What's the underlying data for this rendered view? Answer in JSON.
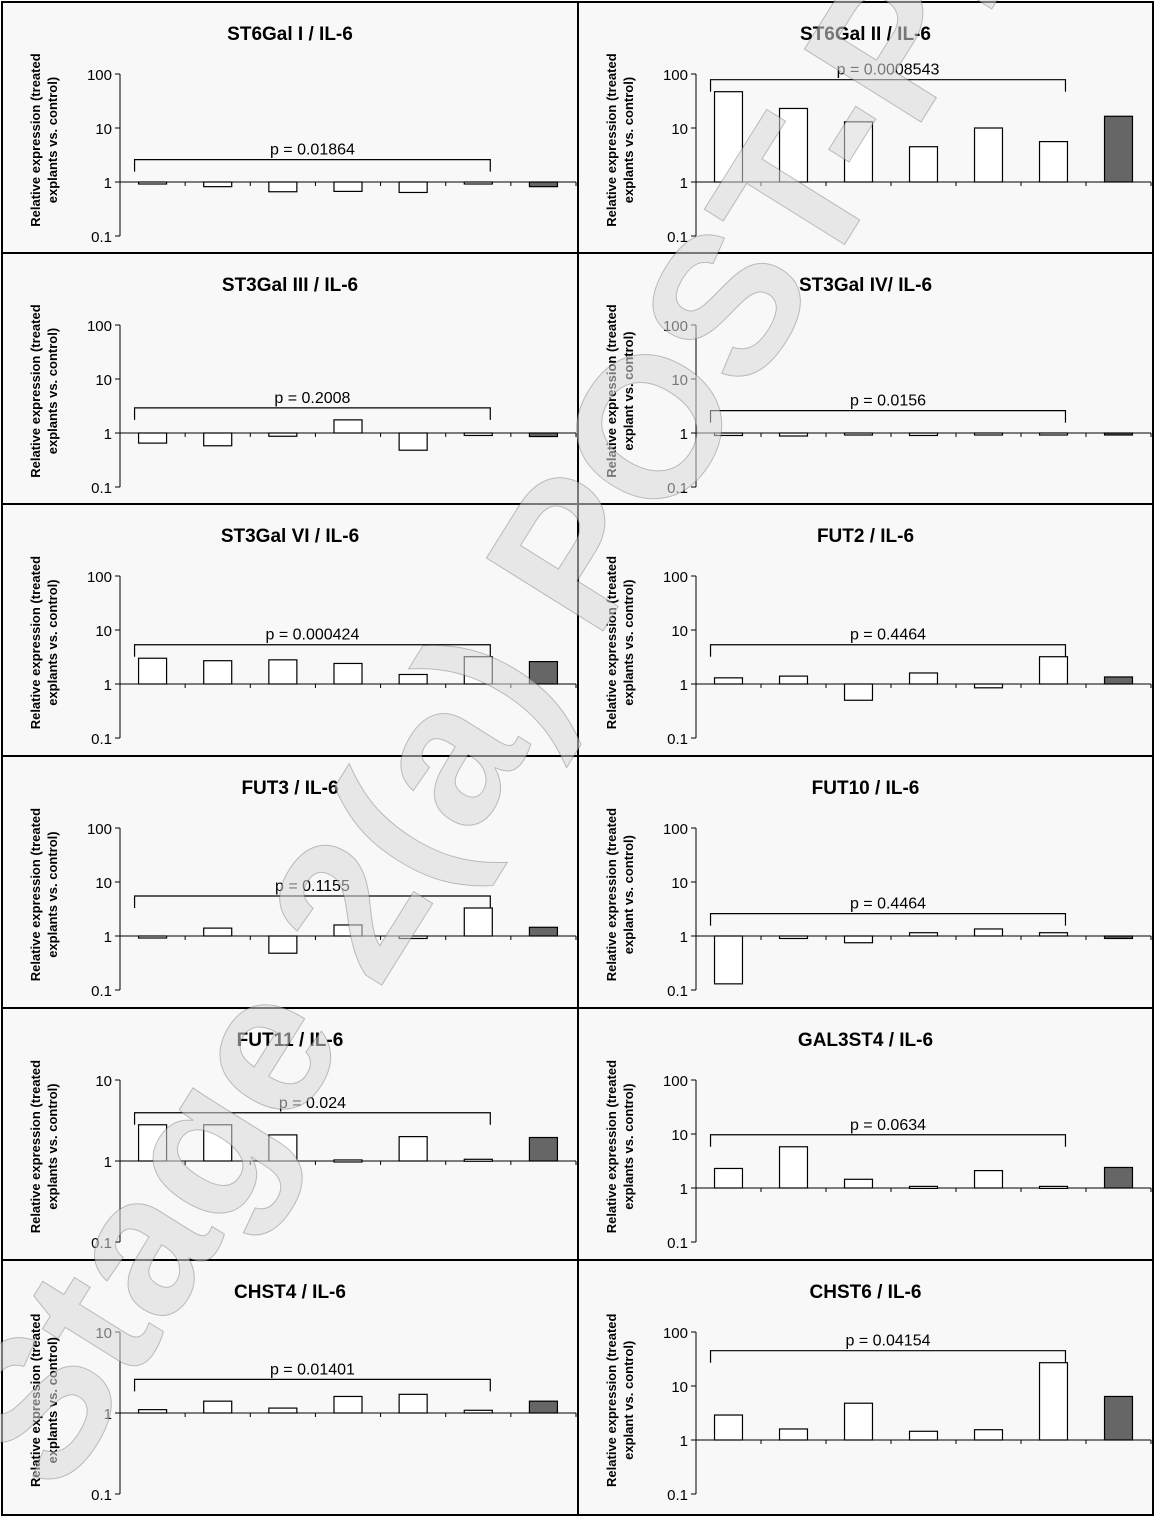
{
  "chart_data": [
    {
      "type": "bar",
      "title": "ST6Gal I / IL-6",
      "ylabel": "Relative expression (treated explants vs. control)",
      "yscale": "log",
      "ylim": [
        0.1,
        100
      ],
      "yticks": [
        "0.1",
        "1",
        "10",
        "100"
      ],
      "values": [
        0.97,
        0.82,
        0.66,
        0.67,
        0.64,
        0.97,
        0.82
      ],
      "pvalue": "p = 0.01864"
    },
    {
      "type": "bar",
      "title": "ST6Gal II / IL-6",
      "ylabel": "Relative expression (treated explants vs. control)",
      "yscale": "log",
      "ylim": [
        0.1,
        100
      ],
      "yticks": [
        "0.1",
        "1",
        "10",
        "100"
      ],
      "values": [
        47,
        23,
        13,
        4.5,
        10,
        5.6,
        16.5
      ],
      "pvalue": "p = 0.0008543"
    },
    {
      "type": "bar",
      "title": "ST3Gal III / IL-6",
      "ylabel": "Relative expression (treated explants vs. control)",
      "yscale": "log",
      "ylim": [
        0.1,
        100
      ],
      "yticks": [
        "0.1",
        "1",
        "10",
        "100"
      ],
      "values": [
        0.65,
        0.58,
        0.87,
        1.75,
        0.48,
        0.9,
        0.86
      ],
      "pvalue": "p = 0.2008"
    },
    {
      "type": "bar",
      "title": "ST3Gal IV/ IL-6",
      "ylabel": "Relative expression (treated explant vs. control)",
      "yscale": "log",
      "ylim": [
        0.1,
        100
      ],
      "yticks": [
        "0.1",
        "1",
        "10",
        "100"
      ],
      "values": [
        0.9,
        0.88,
        1.0,
        0.9,
        1.0,
        0.92,
        0.92
      ],
      "pvalue": "p = 0.0156"
    },
    {
      "type": "bar",
      "title": "ST3Gal VI / IL-6",
      "ylabel": "Relative expression (treated explants vs. control)",
      "yscale": "log",
      "ylim": [
        0.1,
        100
      ],
      "yticks": [
        "0.1",
        "1",
        "10",
        "100"
      ],
      "values": [
        3.0,
        2.7,
        2.8,
        2.4,
        1.5,
        3.2,
        2.6
      ],
      "pvalue": "p = 0.000424"
    },
    {
      "type": "bar",
      "title": "FUT2 / IL-6",
      "ylabel": "Relative expression (treated explants vs. control)",
      "yscale": "log",
      "ylim": [
        0.1,
        100
      ],
      "yticks": [
        "0.1",
        "1",
        "10",
        "100"
      ],
      "values": [
        1.3,
        1.4,
        0.5,
        1.6,
        0.85,
        3.2,
        1.35
      ],
      "pvalue": "p = 0.4464"
    },
    {
      "type": "bar",
      "title": "FUT3 / IL-6",
      "ylabel": "Relative expression (treated explants vs. control)",
      "yscale": "log",
      "ylim": [
        0.1,
        100
      ],
      "yticks": [
        "0.1",
        "1",
        "10",
        "100"
      ],
      "values": [
        0.97,
        1.4,
        0.48,
        1.6,
        0.9,
        3.3,
        1.45
      ],
      "pvalue": "p = 0.1155"
    },
    {
      "type": "bar",
      "title": "FUT10 / IL-6",
      "ylabel": "Relative expression (treated explant vs. control)",
      "yscale": "log",
      "ylim": [
        0.1,
        100
      ],
      "yticks": [
        "0.1",
        "1",
        "10",
        "100"
      ],
      "values": [
        0.13,
        0.9,
        0.75,
        1.15,
        1.35,
        1.15,
        0.9
      ],
      "pvalue": "p = 0.4464"
    },
    {
      "type": "bar",
      "title": "FUT11 / IL-6",
      "ylabel": "Relative expression (treated explants vs. control)",
      "yscale": "log",
      "ylim": [
        0.1,
        10
      ],
      "yticks": [
        "0.1",
        "1",
        "10"
      ],
      "values": [
        2.8,
        2.8,
        2.1,
        1.03,
        2.0,
        1.05,
        1.95
      ],
      "pvalue": "p = 0.024"
    },
    {
      "type": "bar",
      "title": "GAL3ST4 / IL-6",
      "ylabel": "Relative expression (treated explants vs. control)",
      "yscale": "log",
      "ylim": [
        0.1,
        100
      ],
      "yticks": [
        "0.1",
        "1",
        "10",
        "100"
      ],
      "values": [
        2.3,
        5.8,
        1.45,
        1.07,
        2.1,
        1.07,
        2.4
      ],
      "pvalue": "p = 0.0634"
    },
    {
      "type": "bar",
      "title": "CHST4 / IL-6",
      "ylabel": "Relative expression (treated explants vs. control)",
      "yscale": "log",
      "ylim": [
        0.1,
        10
      ],
      "yticks": [
        "0.1",
        "1",
        "10"
      ],
      "values": [
        1.1,
        1.4,
        1.15,
        1.6,
        1.7,
        1.08,
        1.4
      ],
      "pvalue": "p = 0.01401"
    },
    {
      "type": "bar",
      "title": "CHST6 / IL-6",
      "ylabel": "Relative expression (treated explant vs. control)",
      "yscale": "log",
      "ylim": [
        0.1,
        100
      ],
      "yticks": [
        "0.1",
        "1",
        "10",
        "100"
      ],
      "values": [
        2.9,
        1.6,
        4.8,
        1.45,
        1.55,
        27,
        6.4
      ],
      "pvalue": "p = 0.04154"
    }
  ],
  "colors": {
    "open_bar": "#ffffff",
    "filled_bar": "#666666",
    "panel_bg": "#f8f8f8",
    "border": "#000000",
    "watermark": "#d9d9d9"
  },
  "watermark": "Stage 2(a) POST-PRINT"
}
